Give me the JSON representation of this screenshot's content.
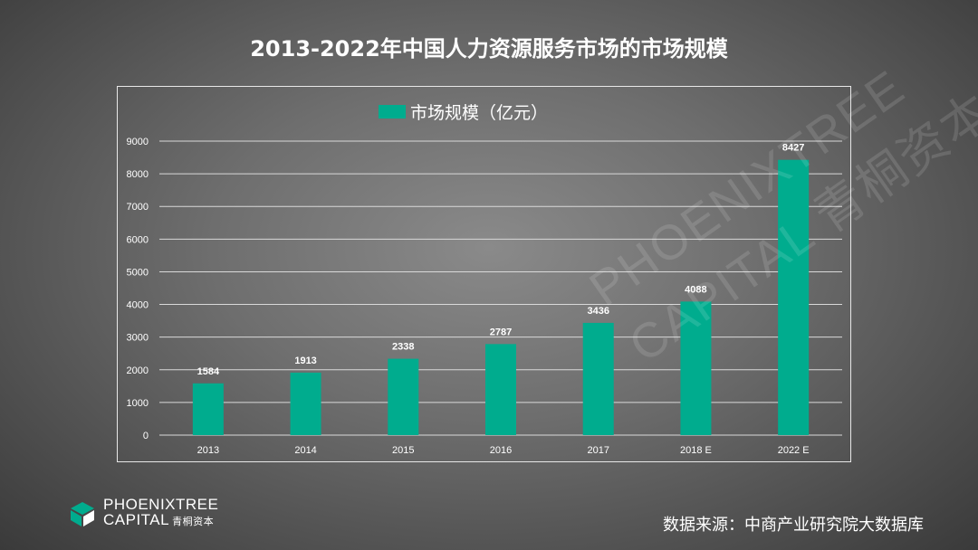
{
  "title": "2013-2022年中国人力资源服务市场的市场规模",
  "source": "数据来源：中商产业研究院大数据库",
  "logo": {
    "line1": "PHOENIXTREE",
    "line2": "CAPITAL",
    "line2_cn": "青桐资本",
    "icon": "phoenixtree-cube-icon"
  },
  "watermark": {
    "line1": "PHOENIXTREE",
    "line2": "CAPITAL 青桐资本"
  },
  "colors": {
    "bar": "#00AC8E",
    "grid": "#d9d9d9",
    "text": "#ffffff"
  },
  "chart_data": {
    "type": "bar",
    "categories": [
      "2013",
      "2014",
      "2015",
      "2016",
      "2017",
      "2018 E",
      "2022 E"
    ],
    "series": [
      {
        "name": "市场规模（亿元）",
        "values": [
          1584,
          1913,
          2338,
          2787,
          3436,
          4088,
          8427
        ]
      }
    ],
    "data_labels": [
      "1584",
      "1913",
      "2338",
      "2787",
      "3436",
      "4088",
      "8427"
    ],
    "yticks": [
      "0",
      "1000",
      "2000",
      "3000",
      "4000",
      "5000",
      "6000",
      "7000",
      "8000",
      "9000"
    ],
    "ylim": [
      0,
      9000
    ],
    "grid": true,
    "legend": "top-center"
  }
}
